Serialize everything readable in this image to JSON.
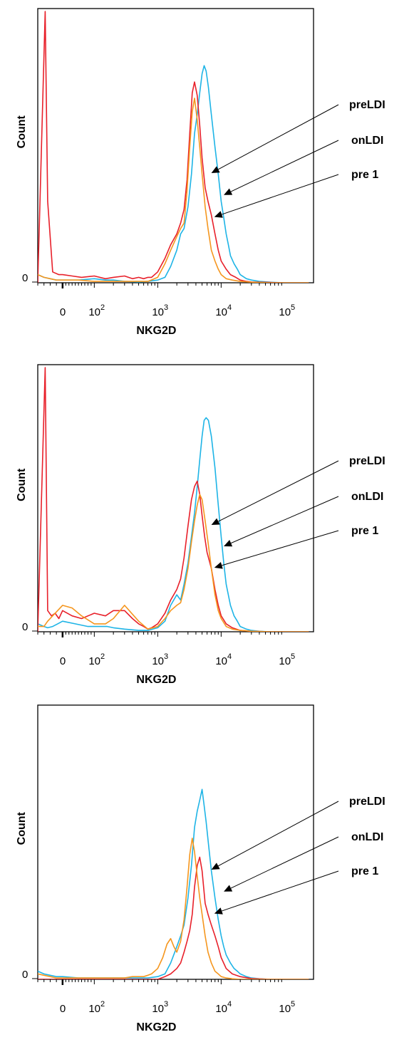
{
  "chart_data": [
    {
      "type": "line",
      "xlabel": "NKG2D",
      "ylabel": "Count",
      "x_scale": "biexponential",
      "x_ticks": [
        {
          "value": 0,
          "label": "0"
        },
        {
          "value": 100,
          "label": "10",
          "sup": "2"
        },
        {
          "value": 1000,
          "label": "10",
          "sup": "3"
        },
        {
          "value": 10000,
          "label": "10",
          "sup": "4"
        },
        {
          "value": 100000,
          "label": "10",
          "sup": "5"
        }
      ],
      "y_zero_label": "0",
      "annotations": [
        {
          "label": "preLDI",
          "points_to": "red"
        },
        {
          "label": "onLDI",
          "points_to": "blue"
        },
        {
          "label": "pre 1",
          "points_to": "orange"
        }
      ],
      "series": [
        {
          "color": "#e8202a",
          "x": [
            -200,
            -140,
            -120,
            -80,
            -30,
            0,
            30,
            60,
            100,
            150,
            200,
            300,
            400,
            500,
            600,
            700,
            800,
            1000,
            1300,
            1600,
            2000,
            2300,
            2600,
            2900,
            3200,
            3500,
            3800,
            4200,
            4600,
            5000,
            5600,
            6200,
            7000,
            8000,
            9000,
            10000,
            12000,
            14000,
            17000,
            20000,
            25000,
            30000,
            40000,
            60000,
            100000,
            250000
          ],
          "y": [
            0,
            100,
            30,
            4,
            3,
            3,
            2.5,
            2,
            2.5,
            1.5,
            2,
            2.5,
            1.5,
            2,
            1.5,
            2,
            2,
            4,
            9,
            14,
            18,
            22,
            27,
            38,
            55,
            70,
            74,
            69,
            58,
            46,
            35,
            30,
            25,
            18,
            12,
            8,
            5,
            3,
            2,
            1,
            0.5,
            0.3,
            0.2,
            0.1,
            0,
            0
          ]
        },
        {
          "color": "#1eb4e6",
          "x": [
            -200,
            -150,
            -100,
            -50,
            0,
            50,
            100,
            150,
            200,
            300,
            500,
            700,
            1000,
            1300,
            1600,
            2000,
            2300,
            2600,
            3000,
            3400,
            3800,
            4200,
            4600,
            5000,
            5400,
            5800,
            6300,
            7000,
            8000,
            9000,
            10000,
            11000,
            12000,
            13000,
            14000,
            16000,
            18000,
            20000,
            25000,
            30000,
            40000,
            60000,
            100000,
            250000
          ],
          "y": [
            3,
            2,
            1.5,
            1,
            1,
            1,
            1.5,
            1,
            1,
            0.5,
            0.3,
            0.5,
            1,
            2,
            6,
            12,
            18,
            20,
            28,
            40,
            55,
            62,
            70,
            77,
            80,
            78,
            72,
            62,
            50,
            40,
            30,
            24,
            18,
            14,
            10,
            7,
            5,
            3,
            1.5,
            1,
            0.5,
            0.2,
            0,
            0
          ]
        },
        {
          "color": "#f5961e",
          "x": [
            -200,
            -150,
            -100,
            -50,
            0,
            50,
            100,
            150,
            200,
            300,
            500,
            700,
            1000,
            1300,
            1600,
            2000,
            2300,
            2600,
            2900,
            3200,
            3500,
            3800,
            4200,
            4600,
            5000,
            5600,
            6200,
            7000,
            8000,
            9000,
            10000,
            12000,
            15000,
            20000,
            30000,
            60000,
            250000
          ],
          "y": [
            3,
            2,
            1.5,
            1,
            1,
            1,
            0.5,
            0.5,
            0.5,
            0.5,
            0.5,
            0.5,
            2,
            7,
            12,
            17,
            20,
            22,
            34,
            50,
            63,
            68,
            60,
            50,
            40,
            28,
            20,
            12,
            8,
            5,
            3,
            1.5,
            1,
            0.5,
            0.2,
            0,
            0
          ]
        }
      ]
    },
    {
      "type": "line",
      "xlabel": "NKG2D",
      "ylabel": "Count",
      "x_scale": "biexponential",
      "x_ticks": [
        {
          "value": 0,
          "label": "0"
        },
        {
          "value": 100,
          "label": "10",
          "sup": "2"
        },
        {
          "value": 1000,
          "label": "10",
          "sup": "3"
        },
        {
          "value": 10000,
          "label": "10",
          "sup": "4"
        },
        {
          "value": 100000,
          "label": "10",
          "sup": "5"
        }
      ],
      "y_zero_label": "0",
      "annotations": [
        {
          "label": "preLDI",
          "points_to": "red"
        },
        {
          "label": "onLDI",
          "points_to": "blue"
        },
        {
          "label": "pre 1",
          "points_to": "orange"
        }
      ],
      "series": [
        {
          "color": "#e8202a",
          "x": [
            -200,
            -140,
            -120,
            -90,
            -60,
            -30,
            0,
            30,
            60,
            100,
            150,
            200,
            300,
            400,
            500,
            600,
            700,
            800,
            1000,
            1300,
            1600,
            2000,
            2300,
            2600,
            3000,
            3400,
            3800,
            4200,
            4600,
            5000,
            5500,
            6000,
            7000,
            8000,
            9000,
            10000,
            12000,
            15000,
            20000,
            30000,
            60000,
            250000
          ],
          "y": [
            0,
            100,
            8,
            6,
            7,
            5,
            8,
            6,
            5,
            7,
            6,
            8,
            8,
            5,
            3,
            2,
            1,
            1.5,
            3,
            7,
            12,
            16,
            20,
            28,
            40,
            50,
            55,
            57,
            52,
            44,
            36,
            30,
            24,
            16,
            10,
            6,
            3,
            1.5,
            0.5,
            0.2,
            0,
            0
          ]
        },
        {
          "color": "#1eb4e6",
          "x": [
            -200,
            -150,
            -120,
            -80,
            -40,
            0,
            40,
            80,
            120,
            160,
            200,
            300,
            500,
            700,
            1000,
            1300,
            1600,
            2000,
            2300,
            2600,
            3000,
            3400,
            3800,
            4200,
            4600,
            5000,
            5400,
            5800,
            6300,
            7000,
            8000,
            9000,
            10000,
            11000,
            12000,
            14000,
            16000,
            18000,
            20000,
            25000,
            30000,
            40000,
            60000,
            100000,
            250000
          ],
          "y": [
            3,
            2,
            1.5,
            2,
            3,
            4,
            3,
            2,
            2,
            2,
            1.5,
            1,
            0.5,
            0.5,
            1.5,
            4,
            10,
            14,
            12,
            18,
            26,
            36,
            45,
            55,
            65,
            74,
            80,
            81,
            80,
            74,
            62,
            48,
            36,
            26,
            18,
            10,
            6,
            4,
            2,
            1,
            0.5,
            0.2,
            0,
            0,
            0
          ]
        },
        {
          "color": "#f5961e",
          "x": [
            -200,
            -150,
            -120,
            -80,
            -40,
            0,
            30,
            60,
            100,
            150,
            200,
            300,
            500,
            700,
            1000,
            1300,
            1600,
            2000,
            2300,
            2600,
            3000,
            3400,
            3800,
            4200,
            4600,
            5000,
            5600,
            6200,
            7000,
            8000,
            9000,
            10000,
            12000,
            15000,
            20000,
            30000,
            60000,
            250000
          ],
          "y": [
            2,
            2,
            4,
            6,
            8,
            10,
            9,
            6,
            3,
            3,
            5,
            10,
            4,
            1,
            2,
            5,
            8,
            10,
            11,
            16,
            24,
            34,
            42,
            48,
            52,
            50,
            42,
            34,
            24,
            14,
            8,
            5,
            2,
            1,
            0.5,
            0.2,
            0,
            0
          ]
        }
      ]
    },
    {
      "type": "line",
      "xlabel": "NKG2D",
      "ylabel": "Count",
      "x_scale": "biexponential",
      "x_ticks": [
        {
          "value": 0,
          "label": "0"
        },
        {
          "value": 100,
          "label": "10",
          "sup": "2"
        },
        {
          "value": 1000,
          "label": "10",
          "sup": "3"
        },
        {
          "value": 10000,
          "label": "10",
          "sup": "4"
        },
        {
          "value": 100000,
          "label": "10",
          "sup": "5"
        }
      ],
      "y_zero_label": "0",
      "annotations": [
        {
          "label": "preLDI",
          "points_to": "red"
        },
        {
          "label": "onLDI",
          "points_to": "blue"
        },
        {
          "label": "pre 1",
          "points_to": "orange"
        }
      ],
      "series": [
        {
          "color": "#e8202a",
          "x": [
            -200,
            -100,
            0,
            100,
            200,
            400,
            600,
            800,
            1000,
            1300,
            1600,
            2000,
            2300,
            2600,
            2900,
            3200,
            3500,
            3800,
            4200,
            4600,
            5000,
            5600,
            6200,
            7000,
            8000,
            9000,
            10000,
            12000,
            15000,
            20000,
            30000,
            60000,
            250000
          ],
          "y": [
            0,
            0,
            0,
            0,
            0,
            0,
            0,
            0,
            0,
            1,
            2,
            4,
            6,
            10,
            14,
            18,
            24,
            34,
            42,
            45,
            40,
            28,
            24,
            20,
            16,
            12,
            8,
            4,
            2,
            1,
            0.3,
            0,
            0
          ]
        },
        {
          "color": "#1eb4e6",
          "x": [
            -200,
            -150,
            -100,
            -50,
            0,
            50,
            100,
            200,
            400,
            700,
            1000,
            1300,
            1600,
            2000,
            2300,
            2600,
            3000,
            3400,
            3800,
            4200,
            4600,
            5000,
            5400,
            5800,
            6300,
            7000,
            8000,
            9000,
            10000,
            11000,
            12000,
            14000,
            16000,
            18000,
            20000,
            25000,
            30000,
            40000,
            60000,
            250000
          ],
          "y": [
            3,
            2,
            1.5,
            1,
            1,
            0.5,
            0.5,
            0.5,
            0.5,
            0.5,
            1,
            2,
            6,
            12,
            16,
            20,
            30,
            42,
            56,
            62,
            66,
            70,
            64,
            58,
            50,
            40,
            30,
            22,
            16,
            12,
            9,
            6,
            4,
            3,
            2,
            1,
            0.5,
            0.2,
            0,
            0
          ]
        },
        {
          "color": "#f5961e",
          "x": [
            -200,
            -150,
            -100,
            -50,
            0,
            100,
            200,
            300,
            400,
            500,
            600,
            700,
            800,
            1000,
            1200,
            1400,
            1600,
            1800,
            2000,
            2300,
            2600,
            2900,
            3200,
            3500,
            3800,
            4200,
            4600,
            5000,
            5600,
            6200,
            7000,
            8000,
            9000,
            10000,
            12000,
            15000,
            20000,
            30000,
            60000,
            250000
          ],
          "y": [
            2,
            1.5,
            1,
            0.5,
            0.5,
            0.5,
            0.5,
            0.5,
            1,
            1,
            1,
            1.5,
            2,
            4,
            8,
            13,
            15,
            12,
            10,
            14,
            22,
            34,
            46,
            52,
            47,
            38,
            30,
            24,
            16,
            10,
            6,
            3,
            2,
            1,
            0.5,
            0.2,
            0,
            0,
            0,
            0
          ]
        }
      ]
    }
  ]
}
